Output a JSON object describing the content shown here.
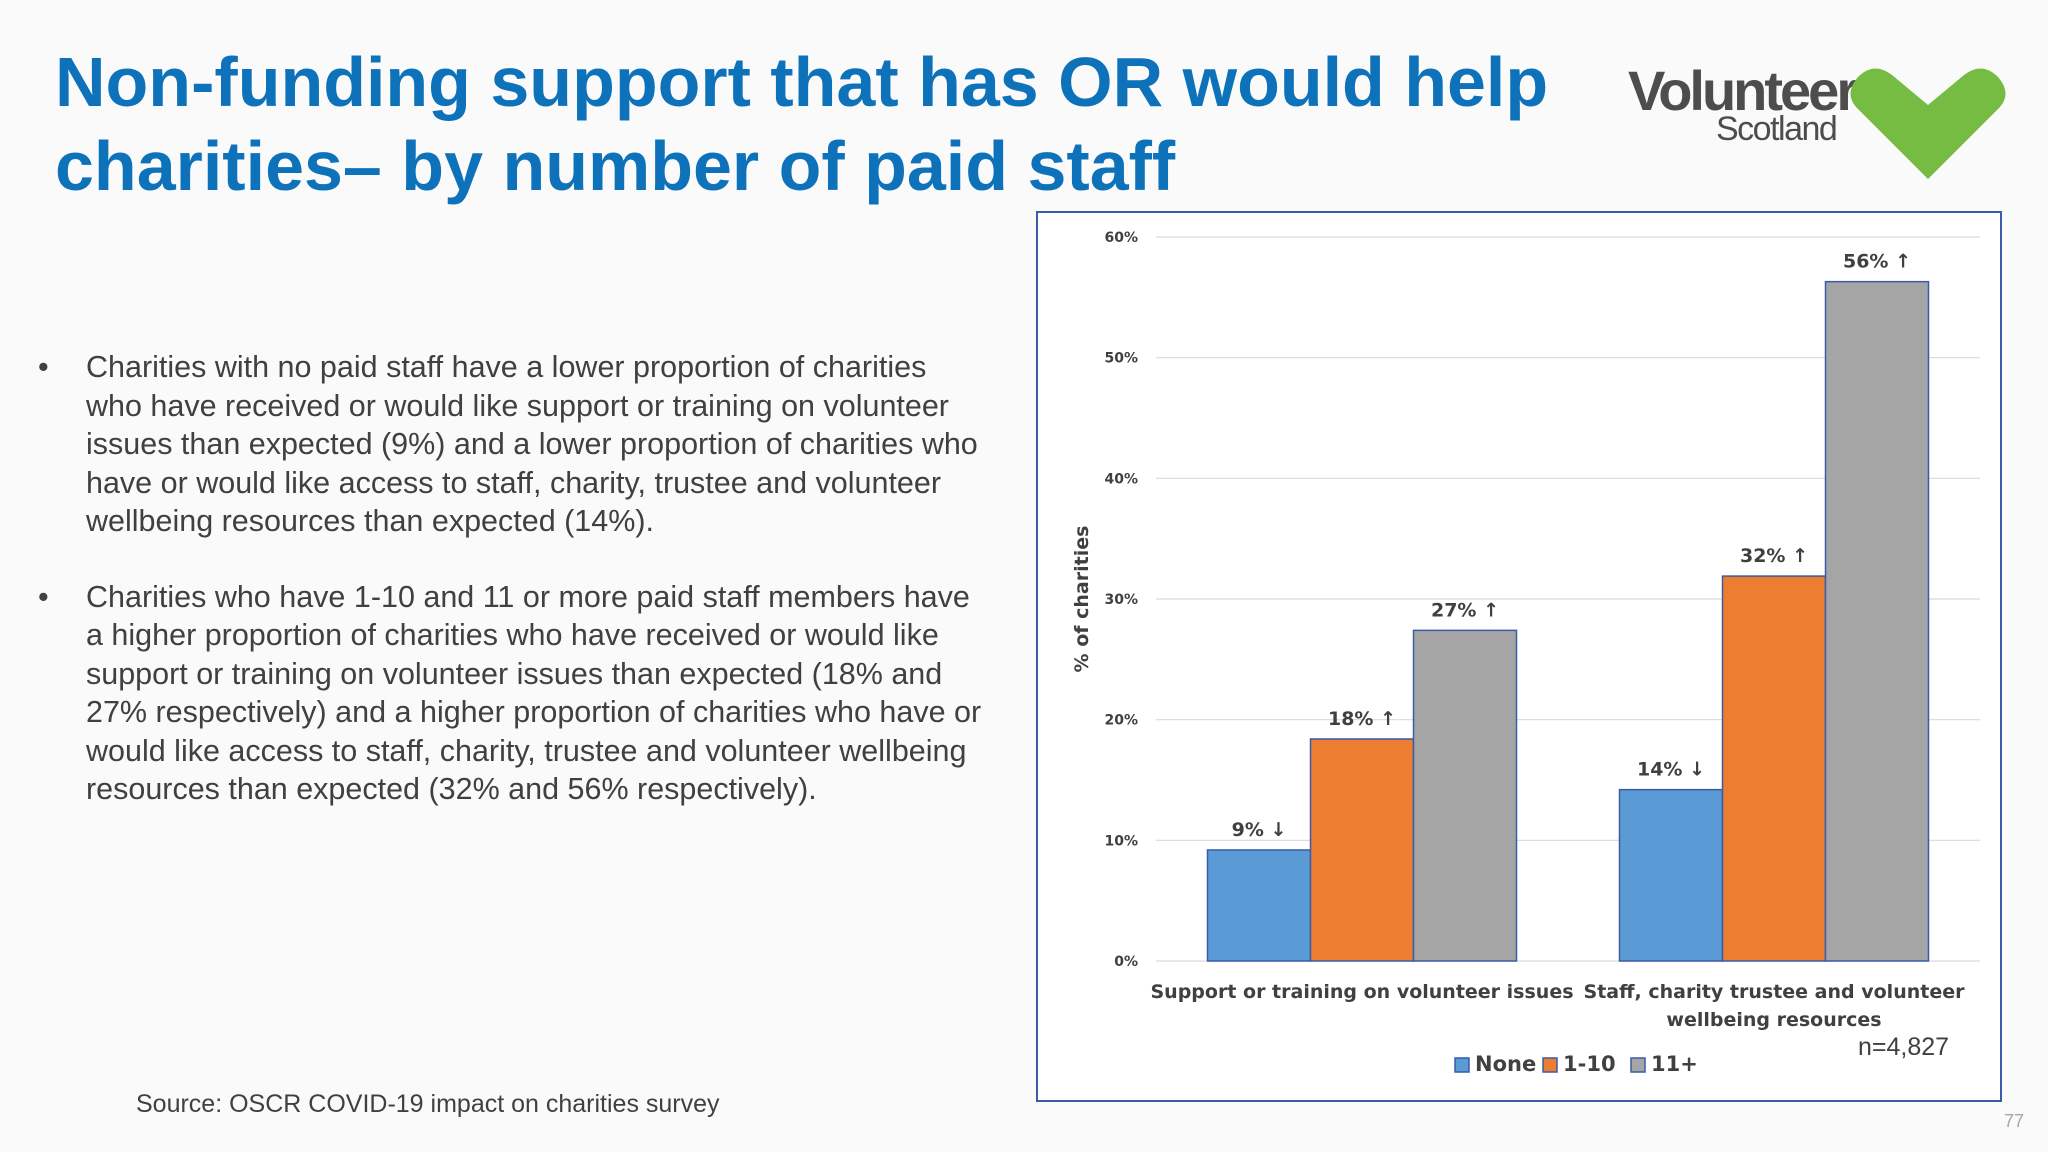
{
  "slide": {
    "title": "Non-funding support that has OR would help charities– by number of paid staff",
    "bullets": [
      "Charities with no paid staff have a lower proportion of charities who have received or would like support or training on volunteer issues than expected (9%) and a lower proportion of charities who have or would like access to staff, charity, trustee and volunteer wellbeing resources than expected (14%).",
      "Charities who have 1-10 and 11 or more paid staff members  have a higher proportion of charities who have received or would like support or training on volunteer issues than expected (18% and 27% respectively) and a higher proportion of charities who have or would like access to staff, charity, trustee and volunteer wellbeing resources than expected (32% and 56% respectively)."
    ],
    "bullet_char": "•",
    "source": "Source: OSCR COVID-19 impact on charities survey",
    "page_number": "77",
    "sample_size": "n=4,827"
  },
  "logo": {
    "word": "Volunteer",
    "sub": "Scotland",
    "heart_color": "#76bc43",
    "text_color": "#4d4d4f"
  },
  "colors": {
    "title": "#0d72b9",
    "chart_border": "#3a5ba8"
  },
  "chart_data": {
    "type": "bar",
    "ylabel": "% of charities",
    "xlabel": "",
    "ylim": [
      0,
      60
    ],
    "yticks": [
      0,
      10,
      20,
      30,
      40,
      50,
      60
    ],
    "ytick_labels": [
      "0%",
      "10%",
      "20%",
      "30%",
      "40%",
      "50%",
      "60%"
    ],
    "grid": true,
    "legend": "bottom",
    "categories": [
      [
        "Support or training on volunteer issues"
      ],
      [
        "Staff, charity trustee and volunteer",
        "wellbeing resources"
      ]
    ],
    "series": [
      {
        "name": "None",
        "color": "#5b9bd5",
        "values": [
          9.2,
          14.2
        ],
        "labels": [
          "9%",
          "14%"
        ],
        "arrows": [
          "↓",
          "↓"
        ]
      },
      {
        "name": "1-10",
        "color": "#ed7d31",
        "values": [
          18.4,
          31.9
        ],
        "labels": [
          "18%",
          "32%"
        ],
        "arrows": [
          "↑",
          "↑"
        ]
      },
      {
        "name": "11+",
        "color": "#a5a5a5",
        "values": [
          27.4,
          56.3
        ],
        "labels": [
          "27%",
          "56%"
        ],
        "arrows": [
          "↑",
          "↑"
        ]
      }
    ]
  }
}
